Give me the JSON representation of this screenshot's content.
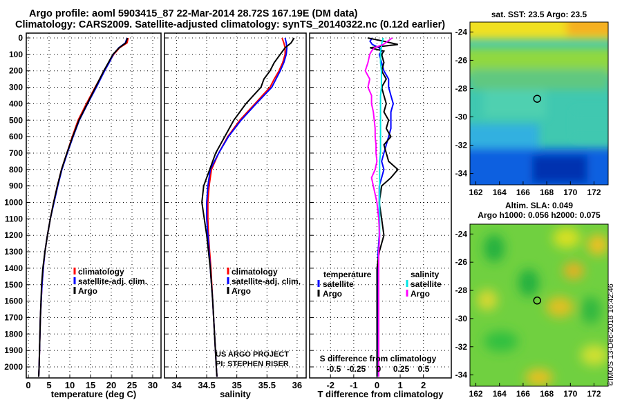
{
  "title": {
    "line1": "Argo profile: aoml 5903415_87 22-Mar-2014 28.72S 167.19E (DM data)",
    "line2": "Climatology: CARS2009. Satellite-adjusted climatology: synTS_20140322.nc (0.12d earlier)"
  },
  "copyright": "©IMOS 13-Dec-2018 16:42:46",
  "colors": {
    "climatology": "#ff0000",
    "satellite": "#0000ff",
    "argo": "#000000",
    "sal_satellite": "#00e5e5",
    "sal_argo": "#ff00ff"
  },
  "chart_data": [
    {
      "type": "line",
      "name": "temperature",
      "xlabel": "temperature (deg C)",
      "xlim": [
        -0.5,
        32
      ],
      "ylim": [
        2070,
        -40
      ],
      "xticks": [
        "0",
        "5",
        "10",
        "15",
        "20",
        "25",
        "30"
      ],
      "xtick_values": [
        0,
        5,
        10,
        15,
        20,
        25,
        30
      ],
      "yticks": [
        "0",
        "100",
        "200",
        "300",
        "400",
        "500",
        "600",
        "700",
        "800",
        "900",
        "1000",
        "1100",
        "1200",
        "1300",
        "1400",
        "1500",
        "1600",
        "1700",
        "1800",
        "1900",
        "2000"
      ],
      "legend": [
        "climatology",
        "satellite-adj. clim.",
        "Argo"
      ],
      "depth": [
        0,
        30,
        60,
        100,
        150,
        200,
        250,
        300,
        400,
        500,
        600,
        700,
        800,
        900,
        1000,
        1100,
        1200,
        1300,
        1400,
        1500,
        1700,
        2000,
        2060
      ],
      "series": [
        {
          "name": "climatology",
          "color": "#ff0000",
          "values": [
            24.1,
            23.8,
            22.0,
            20.6,
            19.4,
            18.2,
            17.2,
            16.1,
            14.0,
            12.0,
            10.6,
            9.3,
            8.0,
            7.0,
            6.1,
            5.3,
            4.6,
            4.0,
            3.6,
            3.3,
            2.9,
            2.6,
            2.5
          ]
        },
        {
          "name": "satellite-adj. clim.",
          "color": "#0000ff",
          "values": [
            23.8,
            23.4,
            21.8,
            20.5,
            19.5,
            18.4,
            17.4,
            16.4,
            14.3,
            12.3,
            10.8,
            9.4,
            8.1,
            7.1,
            6.2,
            5.3,
            4.6,
            4.0,
            3.6,
            3.3,
            2.9,
            2.6,
            2.5
          ]
        },
        {
          "name": "Argo",
          "color": "#000000",
          "values": [
            23.9,
            23.5,
            21.9,
            20.4,
            19.3,
            18.2,
            17.2,
            16.2,
            14.2,
            12.2,
            10.7,
            9.3,
            8.0,
            7.0,
            6.1,
            5.3,
            4.6,
            4.0,
            3.5,
            3.2,
            2.9,
            2.6,
            2.5
          ]
        }
      ]
    },
    {
      "type": "line",
      "name": "salinity",
      "xlabel": "salinity",
      "xlim": [
        33.8,
        36.15
      ],
      "ylim": [
        2070,
        -40
      ],
      "xticks": [
        "34",
        "34.5",
        "35",
        "35.5",
        "36"
      ],
      "xtick_values": [
        34,
        34.5,
        35,
        35.5,
        36
      ],
      "legend": [
        "climatology",
        "satellite-adj. clim.",
        "Argo"
      ],
      "annotation": [
        "US ARGO PROJECT",
        "PI: STEPHEN RISER"
      ],
      "depth": [
        0,
        30,
        60,
        100,
        150,
        200,
        250,
        300,
        400,
        500,
        600,
        700,
        800,
        900,
        1000,
        1100,
        1200,
        1300,
        1400,
        1600,
        1800,
        2000,
        2060
      ],
      "series": [
        {
          "name": "climatology",
          "color": "#ff0000",
          "values": [
            35.75,
            35.78,
            35.8,
            35.8,
            35.76,
            35.7,
            35.62,
            35.55,
            35.3,
            35.05,
            34.85,
            34.7,
            34.58,
            34.54,
            34.52,
            34.52,
            34.53,
            34.55,
            34.57,
            34.6,
            34.63,
            34.66,
            34.67
          ]
        },
        {
          "name": "satellite-adj. clim.",
          "color": "#0000ff",
          "values": [
            35.8,
            35.82,
            35.83,
            35.82,
            35.78,
            35.72,
            35.65,
            35.58,
            35.32,
            35.07,
            34.86,
            34.7,
            34.56,
            34.52,
            34.5,
            34.5,
            34.52,
            34.54,
            34.56,
            34.6,
            34.63,
            34.66,
            34.67
          ]
        },
        {
          "name": "Argo",
          "color": "#000000",
          "values": [
            35.95,
            35.9,
            35.8,
            35.72,
            35.62,
            35.55,
            35.45,
            35.4,
            35.15,
            34.95,
            34.8,
            34.65,
            34.55,
            34.45,
            34.42,
            34.46,
            34.5,
            34.53,
            34.56,
            34.6,
            34.63,
            34.66,
            34.67
          ]
        }
      ]
    },
    {
      "type": "line",
      "name": "difference",
      "xlabel": "T difference from climatology",
      "xlabel2": "S difference from climatology",
      "xlim": [
        -2.9,
        3.2
      ],
      "ylim": [
        2070,
        -40
      ],
      "xticks": [
        "-2",
        "-1",
        "0",
        "1",
        "2"
      ],
      "xtick_values": [
        -2,
        -1,
        0,
        1,
        2
      ],
      "xticks2": [
        "-0.5",
        "-0.25",
        "0",
        "0.25",
        "0.5"
      ],
      "xtick2_values": [
        -0.5,
        -0.25,
        0,
        0.25,
        0.5
      ],
      "legend_t": {
        "title": "temperature",
        "items": [
          "satellite",
          "Argo"
        ]
      },
      "legend_s": {
        "title": "salinity",
        "items": [
          "satellite",
          "Argo"
        ]
      },
      "depth": [
        0,
        20,
        40,
        60,
        80,
        100,
        150,
        200,
        250,
        300,
        350,
        400,
        450,
        500,
        550,
        600,
        650,
        700,
        750,
        800,
        850,
        900,
        1000,
        1100,
        1200,
        1300,
        1400,
        1500,
        1700,
        2000,
        2060
      ],
      "series": [
        {
          "name": "T satellite",
          "axis": "T",
          "color": "#0000ff",
          "values": [
            -0.2,
            -0.3,
            -0.2,
            0.1,
            0.2,
            0.1,
            0.2,
            0.3,
            0.5,
            0.5,
            0.6,
            0.7,
            0.6,
            0.6,
            0.6,
            0.5,
            0.4,
            0.3,
            0.2,
            0.3,
            0.2,
            0.1,
            0.1,
            0.1,
            0.1,
            0.05,
            0.05,
            0.02,
            0.02,
            0.01,
            0.01
          ]
        },
        {
          "name": "T Argo",
          "axis": "T",
          "color": "#000000",
          "values": [
            -0.4,
            0.3,
            0.9,
            -0.3,
            0.3,
            0.2,
            0.3,
            0.2,
            0.4,
            0.2,
            0.3,
            0.4,
            0.3,
            0.5,
            0.4,
            0.6,
            0.3,
            0.4,
            0.5,
            0.9,
            0.6,
            0.2,
            0.1,
            0.2,
            0.3,
            0.1,
            0.0,
            0.0,
            0.0,
            0.0,
            0.0
          ]
        },
        {
          "name": "S satellite",
          "axis": "S",
          "color": "#00e5e5",
          "values": [
            0.05,
            0.04,
            0.03,
            0.03,
            0.02,
            0.02,
            0.02,
            0.03,
            0.03,
            0.03,
            0.02,
            0.02,
            0.02,
            0.02,
            0.02,
            0.02,
            0.02,
            0.02,
            0.01,
            0.01,
            0.01,
            0.01,
            0.01,
            0.01,
            0.01,
            0.0,
            0.0,
            0.0,
            0.0,
            0.0,
            0.0
          ]
        },
        {
          "name": "S Argo",
          "axis": "S",
          "color": "#ff00ff",
          "values": [
            0.15,
            0.1,
            0.05,
            -0.05,
            -0.08,
            -0.1,
            -0.12,
            -0.15,
            -0.1,
            -0.12,
            -0.08,
            -0.08,
            -0.06,
            -0.05,
            -0.04,
            -0.04,
            -0.03,
            -0.03,
            -0.02,
            -0.04,
            -0.08,
            -0.06,
            -0.02,
            0.0,
            0.01,
            0.0,
            0.0,
            0.0,
            0.0,
            0.0,
            0.0
          ]
        }
      ]
    },
    {
      "type": "heatmap",
      "name": "sst-map",
      "title": "sat. SST: 23.5 Argo: 23.5",
      "xticks": [
        "162",
        "164",
        "166",
        "168",
        "170",
        "172"
      ],
      "yticks": [
        "-24",
        "-26",
        "-28",
        "-30",
        "-32",
        "-34"
      ],
      "xlim": [
        161.5,
        173.2
      ],
      "ylim": [
        -23.3,
        -34.8
      ],
      "marker": {
        "lon": 167.19,
        "lat": -28.72
      }
    },
    {
      "type": "heatmap",
      "name": "sla-map",
      "title": "Altim. SLA: 0.049",
      "subtitle": "Argo h1000: 0.056 h2000: 0.075",
      "xticks": [
        "162",
        "164",
        "166",
        "168",
        "170",
        "172"
      ],
      "yticks": [
        "-24",
        "-26",
        "-28",
        "-30",
        "-32",
        "-34"
      ],
      "xlim": [
        161.5,
        173.2
      ],
      "ylim": [
        -23.3,
        -34.8
      ],
      "marker": {
        "lon": 167.19,
        "lat": -28.72
      }
    }
  ]
}
